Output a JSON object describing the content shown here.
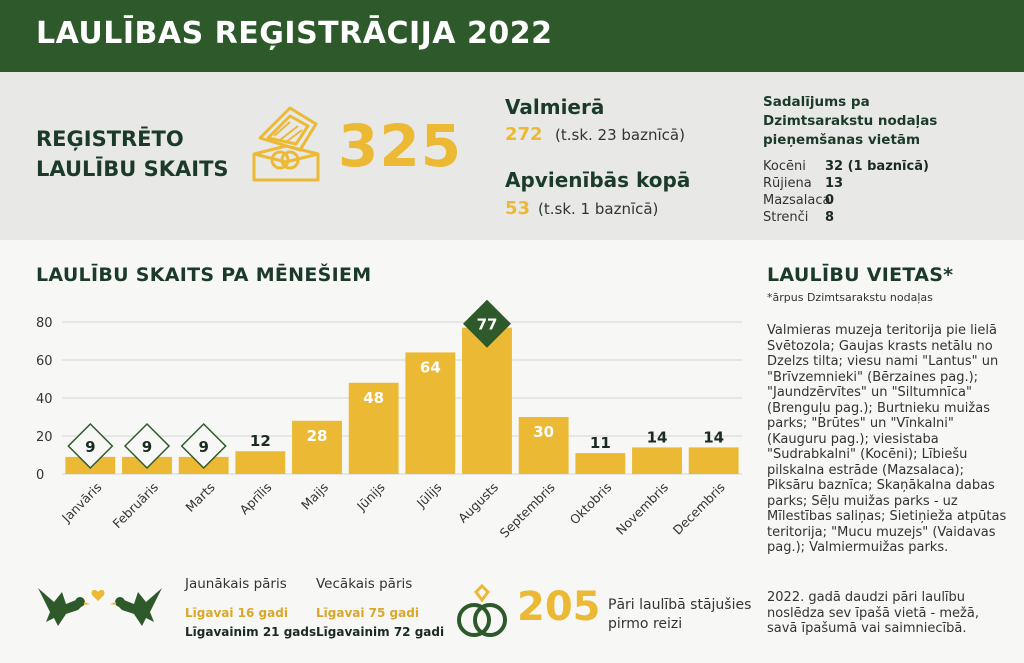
{
  "header": {
    "title": "LAULĪBAS REĢISTRĀCIJA 2022"
  },
  "total": {
    "label_line1": "REĢISTRĒTO",
    "label_line2": "LAULĪBU SKAITS",
    "value": "325"
  },
  "valmiera": {
    "title": "Valmierā",
    "value": "272",
    "note": "(t.sk. 23 baznīcā)"
  },
  "municipality": {
    "title": "Apvienībās kopā",
    "value": "53",
    "note": "(t.sk. 1 baznīcā)"
  },
  "split": {
    "title_line1": "Sadalījums pa",
    "title_line2": "Dzimtsarakstu nodaļas",
    "title_line3": "pieņemšanas vietām",
    "rows": [
      {
        "name": "Kocēni",
        "value": "32 (1 baznīcā)"
      },
      {
        "name": "Rūjiena",
        "value": "13"
      },
      {
        "name": "Mazsalaca",
        "value": "0"
      },
      {
        "name": "Strenči",
        "value": "8"
      }
    ]
  },
  "monthly_title": "LAULĪBU SKAITS PA MĒNEŠIEM",
  "places": {
    "title": "LAULĪBU VIETAS*",
    "footnote": "*ārpus Dzimtsarakstu nodaļas",
    "text": "Valmieras muzeja teritorija pie lielā Svētozola; Gaujas krasts netālu no Dzelzs tilta; viesu nami \"Lantus\" un \"Brīvzemnieki\" (Bērzaines pag.); \"Jaundzērvītes\" un \"Siltumnīca\" (Brenguļu pag.); Burtnieku muižas parks; \"Brūtes\" un \"Vīnkalni\" (Kauguru pag.); viesistaba \"Sudrabkalni\" (Kocēni); Lībiešu pilskalna estrāde (Mazsalaca); Piksāru baznīca; Skaņākalna dabas parks; Sēļu muižas parks - uz Mīlestības saliņas; Sietiņieža atpūtas teritorija; \"Mucu muzejs\" (Vaidavas pag.); Valmiermuižas parks.",
    "text2": "2022. gadā daudzi pāri laulību noslēdza sev īpašā vietā - mežā, savā īpašumā vai saimniecībā."
  },
  "ages": {
    "youngest": {
      "title": "Jaunākais pāris",
      "bride": "Līgavai 16 gadi",
      "groom": "Līgavainim 21 gads"
    },
    "oldest": {
      "title": "Vecākais pāris",
      "bride": "Līgavai 75 gadi",
      "groom": "Līgavainim 72 gadi"
    }
  },
  "first_marriage": {
    "value": "205",
    "label_line1": "Pāri laulībā stājušies",
    "label_line2": "pirmo reizi"
  },
  "colors": {
    "gold": "#ecb934",
    "green": "#2e5a2b",
    "navy": "#1b3a2a"
  },
  "icons": [
    "ring-box-icon",
    "dove-left-icon",
    "heart-icon",
    "dove-right-icon",
    "interlocked-rings-icon"
  ],
  "chart_data": {
    "type": "bar",
    "categories": [
      "Janvāris",
      "Februāris",
      "Marts",
      "Aprīlis",
      "Maijs",
      "Jūnijs",
      "Jūlijs",
      "Augusts",
      "Septembris",
      "Oktobris",
      "Novembris",
      "Decembris"
    ],
    "values": [
      9,
      9,
      9,
      12,
      28,
      48,
      64,
      77,
      30,
      11,
      14,
      14
    ],
    "ylim": [
      0,
      80
    ],
    "yticks": [
      0,
      20,
      40,
      60,
      80
    ],
    "grid": true,
    "highlight": {
      "diamond_gold_outline": [
        0,
        1,
        2
      ],
      "diamond_green_fill": [
        7
      ]
    }
  }
}
